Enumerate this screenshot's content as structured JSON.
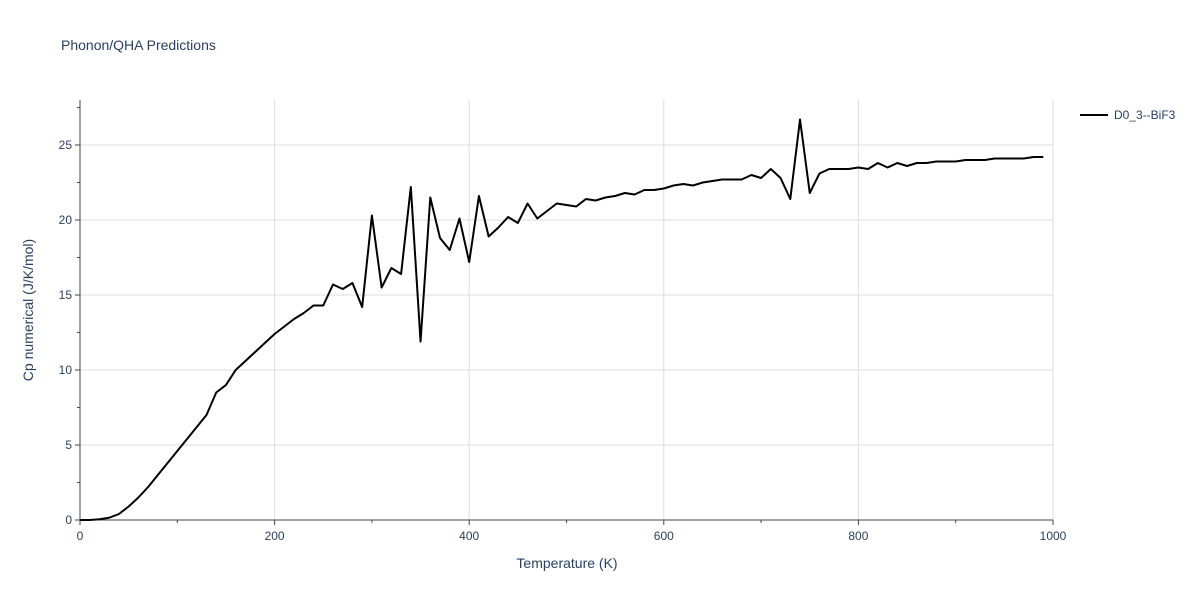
{
  "chart_data": {
    "type": "line",
    "title": "Phonon/QHA Predictions",
    "xlabel": "Temperature (K)",
    "ylabel": "Cp numerical (J/K/mol)",
    "xlim": [
      0,
      1000
    ],
    "ylim": [
      0,
      28
    ],
    "x_ticks": [
      0,
      200,
      400,
      600,
      800,
      1000
    ],
    "y_ticks": [
      0,
      5,
      10,
      15,
      20,
      25
    ],
    "grid": true,
    "legend_position": "top-right",
    "series": [
      {
        "name": "D0_3--BiF3",
        "color": "#000000",
        "x": [
          0,
          10,
          20,
          30,
          40,
          50,
          60,
          70,
          80,
          90,
          100,
          110,
          120,
          130,
          140,
          150,
          160,
          170,
          180,
          190,
          200,
          210,
          220,
          230,
          240,
          250,
          260,
          270,
          280,
          290,
          300,
          310,
          320,
          330,
          340,
          350,
          360,
          370,
          380,
          390,
          400,
          410,
          420,
          430,
          440,
          450,
          460,
          470,
          480,
          490,
          500,
          510,
          520,
          530,
          540,
          550,
          560,
          570,
          580,
          590,
          600,
          610,
          620,
          630,
          640,
          650,
          660,
          670,
          680,
          690,
          700,
          710,
          720,
          730,
          740,
          750,
          760,
          770,
          780,
          790,
          800,
          810,
          820,
          830,
          840,
          850,
          860,
          870,
          880,
          890,
          900,
          910,
          920,
          930,
          940,
          950,
          960,
          970,
          980,
          990
        ],
        "y": [
          0,
          0,
          0.05,
          0.15,
          0.4,
          0.9,
          1.5,
          2.2,
          3.0,
          3.8,
          4.6,
          5.4,
          6.2,
          7.0,
          8.5,
          9.0,
          10.0,
          10.6,
          11.2,
          11.8,
          12.4,
          12.9,
          13.4,
          13.8,
          14.3,
          14.3,
          15.7,
          15.4,
          15.8,
          14.2,
          20.3,
          15.5,
          16.8,
          16.4,
          22.2,
          11.9,
          21.5,
          18.8,
          18.0,
          20.1,
          17.2,
          21.6,
          18.9,
          19.5,
          20.2,
          19.8,
          21.1,
          20.1,
          20.6,
          21.1,
          21.0,
          20.9,
          21.4,
          21.3,
          21.5,
          21.6,
          21.8,
          21.7,
          22.0,
          22.0,
          22.1,
          22.3,
          22.4,
          22.3,
          22.5,
          22.6,
          22.7,
          22.7,
          22.7,
          23.0,
          22.8,
          23.4,
          22.8,
          21.4,
          26.7,
          21.8,
          23.1,
          23.4,
          23.4,
          23.4,
          23.5,
          23.4,
          23.8,
          23.5,
          23.8,
          23.6,
          23.8,
          23.8,
          23.9,
          23.9,
          23.9,
          24.0,
          24.0,
          24.0,
          24.1,
          24.1,
          24.1,
          24.1,
          24.2,
          24.2
        ]
      }
    ]
  }
}
